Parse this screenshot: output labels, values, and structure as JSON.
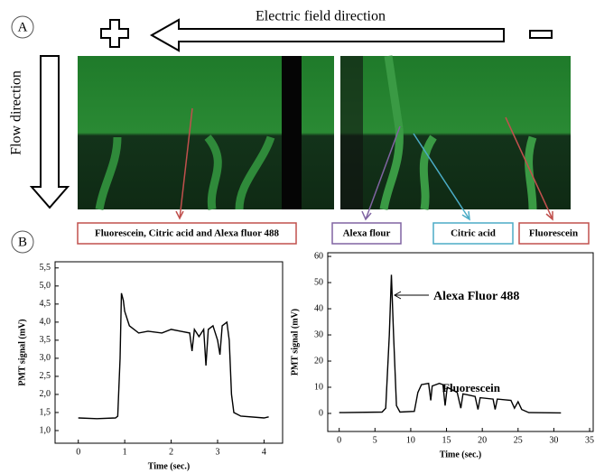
{
  "figure": {
    "panel_a": "A",
    "panel_b": "B",
    "electric_field": "Electric field direction",
    "flow": "Flow direction",
    "labels": [
      "Fluorescein, Citric acid and Alexa fluor 488",
      "Alexa flour",
      "Citric acid",
      "Fluorescein"
    ]
  },
  "chart_data": [
    {
      "type": "line",
      "xlabel": "Time (sec.)",
      "ylabel": "PMT signal (mV)",
      "color": "#000000",
      "x": [
        0,
        0.4,
        0.8,
        0.85,
        0.9,
        0.93,
        0.97,
        1.0,
        1.1,
        1.3,
        1.5,
        1.8,
        2.0,
        2.2,
        2.4,
        2.45,
        2.5,
        2.6,
        2.7,
        2.75,
        2.8,
        2.9,
        3.0,
        3.05,
        3.1,
        3.2,
        3.25,
        3.3,
        3.35,
        3.5,
        4.0,
        4.1
      ],
      "values": [
        1.35,
        1.33,
        1.35,
        1.4,
        3.0,
        4.8,
        4.6,
        4.3,
        3.9,
        3.7,
        3.75,
        3.7,
        3.8,
        3.75,
        3.7,
        3.2,
        3.8,
        3.6,
        3.8,
        2.8,
        3.8,
        3.9,
        3.5,
        3.1,
        3.9,
        4.0,
        3.5,
        2.0,
        1.5,
        1.4,
        1.35,
        1.38
      ],
      "xlim": [
        -0.5,
        4.4
      ],
      "xticks": [
        0,
        1,
        2,
        3,
        4
      ],
      "ylim": [
        0.65,
        5.67
      ],
      "yticks": [
        {
          "value": 1.0,
          "label": "1,0"
        },
        {
          "value": 1.5,
          "label": "1,5"
        },
        {
          "value": 2.0,
          "label": "2,0"
        },
        {
          "value": 2.5,
          "label": "2,5"
        },
        {
          "value": 3.0,
          "label": "3,0"
        },
        {
          "value": 3.5,
          "label": "3,5"
        },
        {
          "value": 4.0,
          "label": "4,0"
        },
        {
          "value": 4.5,
          "label": "4,5"
        },
        {
          "value": 5.0,
          "label": "5,0"
        },
        {
          "value": 5.5,
          "label": "5,5"
        }
      ]
    },
    {
      "type": "line",
      "xlabel": "Time (sec.)",
      "ylabel": "PMT signal (mV)",
      "color": "#000000",
      "annotations": [
        "Alexa Fluor 488",
        "Fluorescein"
      ],
      "x": [
        0,
        6.0,
        6.5,
        7.0,
        7.3,
        7.6,
        8.0,
        8.5,
        10.5,
        11,
        11.5,
        12.5,
        12.8,
        13,
        14,
        14.5,
        14.8,
        15.1,
        16.5,
        17,
        17.3,
        19,
        19.4,
        19.7,
        21.5,
        21.8,
        22.1,
        24,
        24.5,
        25,
        25.5,
        26.5,
        31
      ],
      "values": [
        0.3,
        0.5,
        2,
        30,
        53,
        30,
        3,
        0.5,
        0.8,
        8,
        11,
        11.5,
        5,
        10.5,
        11.5,
        11,
        3,
        10,
        8,
        2,
        7.5,
        6.5,
        1.5,
        6,
        5.5,
        1.5,
        5.5,
        5,
        2,
        4.5,
        1.5,
        0.3,
        0.2
      ],
      "xlim": [
        -1.6,
        35.5
      ],
      "xticks": [
        0,
        5,
        10,
        15,
        20,
        25,
        30,
        35
      ],
      "ylim": [
        -6.9,
        61.4
      ],
      "yticks": [
        0,
        10,
        20,
        30,
        40,
        50,
        60
      ]
    }
  ]
}
